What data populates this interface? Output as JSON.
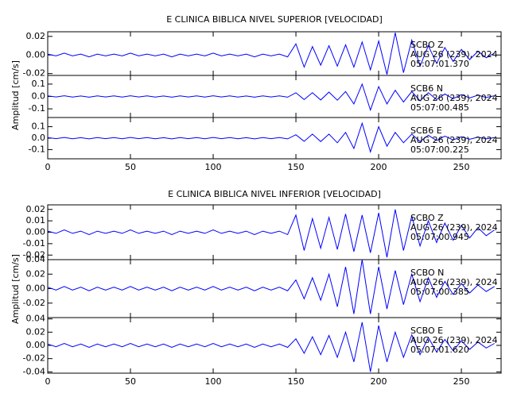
{
  "chart_data": [
    {
      "type": "line",
      "title": "E CLINICA BIBLICA NIVEL SUPERIOR [VELOCIDAD]",
      "y_label": "Amplitud [cm/s]",
      "xlim": [
        0,
        274
      ],
      "xticks": [
        0,
        50,
        100,
        150,
        200,
        250
      ],
      "x": [
        0,
        5,
        10,
        15,
        20,
        25,
        30,
        35,
        40,
        45,
        50,
        55,
        60,
        65,
        70,
        75,
        80,
        85,
        90,
        95,
        100,
        105,
        110,
        115,
        120,
        125,
        130,
        135,
        140,
        145,
        150,
        155,
        160,
        165,
        170,
        175,
        180,
        185,
        190,
        195,
        200,
        205,
        210,
        215,
        220,
        225,
        230,
        235,
        240,
        245,
        250,
        255,
        260,
        265,
        270
      ],
      "panels": [
        {
          "color": "#0000ff",
          "ylim": [
            -0.022,
            0.025
          ],
          "yticks": [
            {
              "value": -0.02,
              "label": "-0.02"
            },
            {
              "value": 0,
              "label": "0.00"
            },
            {
              "value": 0.02,
              "label": "0.02"
            }
          ],
          "annotations": [
            "SCBO   Z",
            "AUG 26 (239), 2024",
            "05:07:01.370"
          ],
          "values": [
            0.001,
            -0.001,
            0.002,
            -0.001,
            0.001,
            -0.002,
            0.001,
            -0.001,
            0.001,
            -0.001,
            0.002,
            -0.001,
            0.001,
            -0.001,
            0.001,
            -0.002,
            0.001,
            -0.001,
            0.001,
            -0.001,
            0.002,
            -0.001,
            0.001,
            -0.001,
            0.001,
            -0.002,
            0.001,
            -0.001,
            0.001,
            -0.002,
            0.012,
            -0.013,
            0.009,
            -0.011,
            0.01,
            -0.012,
            0.011,
            -0.013,
            0.014,
            -0.016,
            0.015,
            -0.021,
            0.024,
            -0.019,
            0.016,
            -0.012,
            0.01,
            -0.009,
            0.008,
            -0.007,
            0.006,
            -0.005,
            0.004,
            -0.003,
            0.002
          ]
        },
        {
          "color": "#0000ff",
          "ylim": [
            -0.17,
            0.17
          ],
          "yticks": [
            {
              "value": -0.1,
              "label": "-0.1"
            },
            {
              "value": 0,
              "label": "0.0"
            },
            0.1
          ],
          "annotations": [
            "SCB6   N",
            "AUG 26 (239), 2024",
            "05:07:00.485"
          ],
          "values": [
            0.005,
            -0.004,
            0.006,
            -0.005,
            0.004,
            -0.006,
            0.005,
            -0.004,
            0.005,
            -0.005,
            0.006,
            -0.004,
            0.005,
            -0.005,
            0.004,
            -0.006,
            0.005,
            -0.004,
            0.005,
            -0.005,
            0.006,
            -0.004,
            0.005,
            -0.005,
            0.004,
            -0.006,
            0.005,
            -0.004,
            0.005,
            -0.006,
            0.03,
            -0.025,
            0.03,
            -0.028,
            0.035,
            -0.03,
            0.04,
            -0.06,
            0.1,
            -0.11,
            0.08,
            -0.06,
            0.05,
            -0.045,
            0.04,
            -0.035,
            0.03,
            -0.025,
            0.02,
            -0.018,
            0.015,
            -0.012,
            0.01,
            -0.008,
            0.006
          ]
        },
        {
          "color": "#0000ff",
          "ylim": [
            -0.18,
            0.18
          ],
          "yticks": [
            {
              "value": -0.1,
              "label": "-0.1"
            },
            {
              "value": 0,
              "label": "0.0"
            },
            0.1
          ],
          "annotations": [
            "SCB6   E",
            "AUG 26 (239), 2024",
            "05:07:00.225"
          ],
          "values": [
            0.005,
            -0.004,
            0.006,
            -0.005,
            0.004,
            -0.006,
            0.005,
            -0.004,
            0.005,
            -0.005,
            0.006,
            -0.004,
            0.005,
            -0.005,
            0.004,
            -0.006,
            0.005,
            -0.004,
            0.005,
            -0.005,
            0.006,
            -0.004,
            0.005,
            -0.005,
            0.004,
            -0.006,
            0.005,
            -0.004,
            0.005,
            -0.006,
            0.03,
            -0.028,
            0.035,
            -0.03,
            0.035,
            -0.04,
            0.05,
            -0.09,
            0.13,
            -0.12,
            0.1,
            -0.07,
            0.05,
            -0.04,
            0.035,
            -0.03,
            0.025,
            -0.02,
            0.018,
            -0.015,
            0.012,
            -0.01,
            0.008,
            -0.006,
            0.005
          ]
        }
      ]
    },
    {
      "type": "line",
      "title": "E CLINICA BIBLICA NIVEL INFERIOR [VELOCIDAD]",
      "y_label": "Amplitud [cm/s]",
      "xlim": [
        0,
        274
      ],
      "xticks": [
        0,
        50,
        100,
        150,
        200,
        250
      ],
      "x": [
        0,
        5,
        10,
        15,
        20,
        25,
        30,
        35,
        40,
        45,
        50,
        55,
        60,
        65,
        70,
        75,
        80,
        85,
        90,
        95,
        100,
        105,
        110,
        115,
        120,
        125,
        130,
        135,
        140,
        145,
        150,
        155,
        160,
        165,
        170,
        175,
        180,
        185,
        190,
        195,
        200,
        205,
        210,
        215,
        220,
        225,
        230,
        235,
        240,
        245,
        250,
        255,
        260,
        265,
        270
      ],
      "panels": [
        {
          "color": "#0000ff",
          "ylim": [
            -0.024,
            0.024
          ],
          "yticks": [
            {
              "value": -0.02,
              "label": "-0.02"
            },
            {
              "value": -0.01,
              "label": "-0.01"
            },
            {
              "value": 0,
              "label": "0.00"
            },
            0.01,
            0.02
          ],
          "annotations": [
            "SCBO   Z",
            "AUG 26 (239), 2024",
            "05:07:00.945"
          ],
          "values": [
            0.001,
            -0.001,
            0.002,
            -0.001,
            0.001,
            -0.002,
            0.001,
            -0.001,
            0.001,
            -0.001,
            0.002,
            -0.001,
            0.001,
            -0.001,
            0.001,
            -0.002,
            0.001,
            -0.001,
            0.001,
            -0.001,
            0.002,
            -0.001,
            0.001,
            -0.001,
            0.001,
            -0.002,
            0.001,
            -0.001,
            0.001,
            -0.002,
            0.015,
            -0.016,
            0.012,
            -0.014,
            0.013,
            -0.015,
            0.016,
            -0.017,
            0.015,
            -0.018,
            0.017,
            -0.022,
            0.02,
            -0.016,
            0.014,
            -0.012,
            0.01,
            -0.009,
            0.008,
            -0.007,
            0.006,
            -0.005,
            0.004,
            -0.003,
            0.002
          ]
        },
        {
          "color": "#0000ff",
          "ylim": [
            -0.04,
            0.04
          ],
          "yticks": [
            {
              "value": -0.02,
              "label": "-0.02"
            },
            {
              "value": 0,
              "label": "0.00"
            },
            0.02,
            0.04
          ],
          "annotations": [
            "SCBO   N",
            "AUG 26 (239), 2024",
            "05:07:00.385"
          ],
          "values": [
            0.002,
            -0.002,
            0.003,
            -0.002,
            0.002,
            -0.003,
            0.002,
            -0.002,
            0.002,
            -0.002,
            0.003,
            -0.002,
            0.002,
            -0.002,
            0.002,
            -0.003,
            0.002,
            -0.002,
            0.002,
            -0.002,
            0.003,
            -0.002,
            0.002,
            -0.002,
            0.002,
            -0.003,
            0.002,
            -0.002,
            0.002,
            -0.003,
            0.012,
            -0.014,
            0.015,
            -0.016,
            0.02,
            -0.025,
            0.03,
            -0.035,
            0.04,
            -0.035,
            0.03,
            -0.028,
            0.025,
            -0.022,
            0.02,
            -0.018,
            0.015,
            -0.012,
            0.01,
            -0.008,
            0.007,
            -0.006,
            0.005,
            -0.004,
            0.003
          ]
        },
        {
          "color": "#0000ff",
          "ylim": [
            -0.042,
            0.042
          ],
          "yticks": [
            {
              "value": -0.04,
              "label": "-0.04"
            },
            {
              "value": -0.02,
              "label": "-0.02"
            },
            {
              "value": 0,
              "label": "0.00"
            },
            0.02,
            0.04
          ],
          "annotations": [
            "SCBO   E",
            "AUG 26 (239), 2024",
            "05:07:01.620"
          ],
          "values": [
            0.002,
            -0.002,
            0.003,
            -0.002,
            0.002,
            -0.003,
            0.002,
            -0.002,
            0.002,
            -0.002,
            0.003,
            -0.002,
            0.002,
            -0.002,
            0.002,
            -0.003,
            0.002,
            -0.002,
            0.002,
            -0.002,
            0.003,
            -0.002,
            0.002,
            -0.002,
            0.002,
            -0.003,
            0.002,
            -0.002,
            0.002,
            -0.003,
            0.01,
            -0.012,
            0.013,
            -0.014,
            0.015,
            -0.018,
            0.02,
            -0.025,
            0.035,
            -0.04,
            0.03,
            -0.025,
            0.02,
            -0.018,
            0.016,
            -0.014,
            0.012,
            -0.01,
            0.009,
            -0.008,
            0.007,
            -0.006,
            0.005,
            -0.004,
            0.003
          ]
        }
      ]
    }
  ]
}
